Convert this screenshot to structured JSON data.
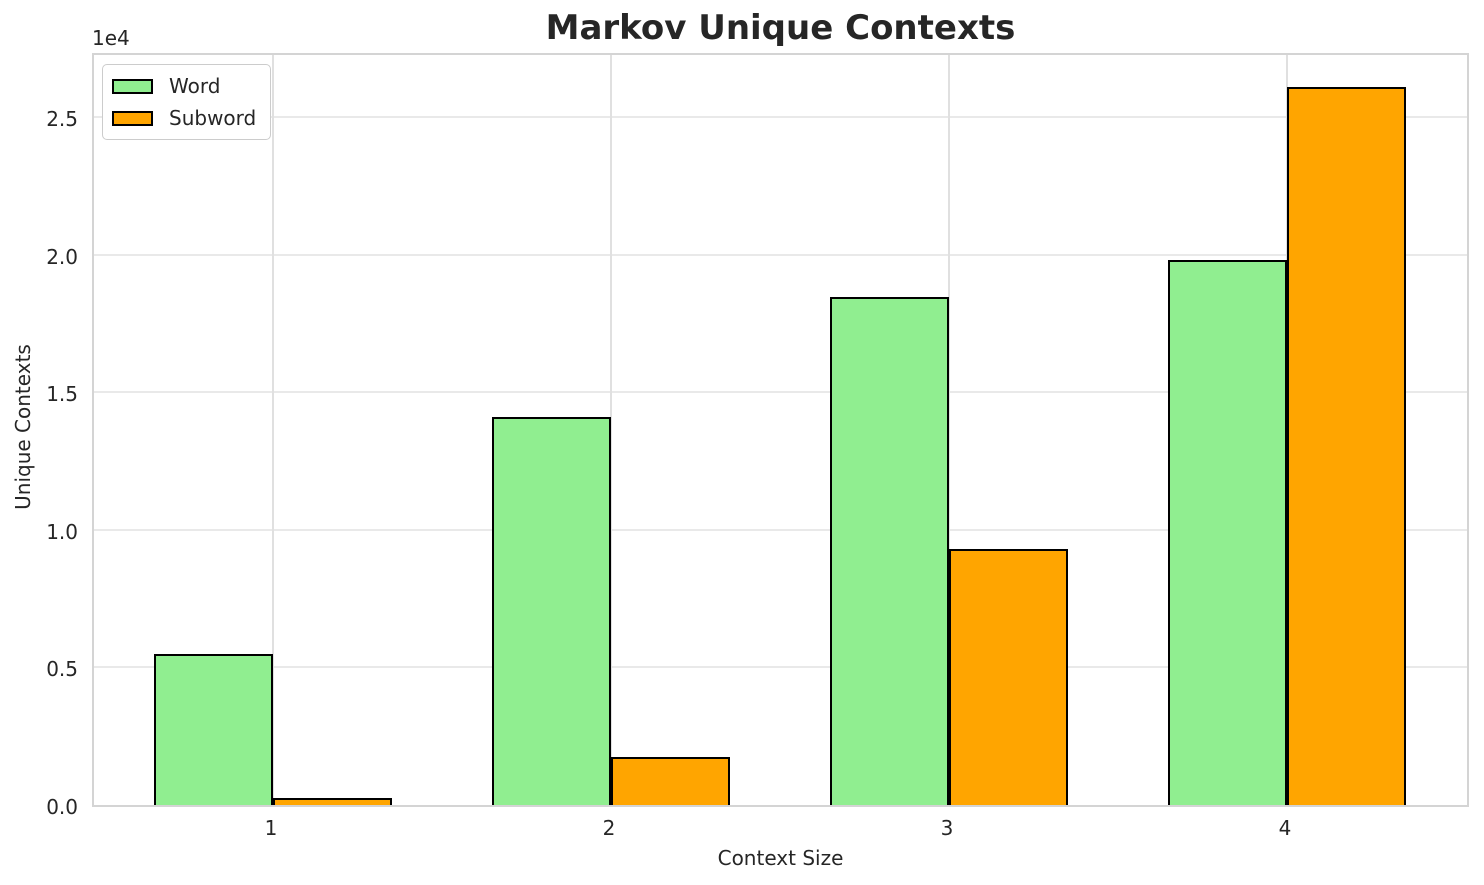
{
  "chart_data": {
    "type": "bar",
    "title": "Markov Unique Contexts",
    "xlabel": "Context Size",
    "ylabel": "Unique Contexts",
    "y_offset_label": "1e4",
    "categories": [
      "1",
      "2",
      "3",
      "4"
    ],
    "series": [
      {
        "name": "Word",
        "color": "#90ee90",
        "values": [
          5500,
          14100,
          18450,
          19800
        ]
      },
      {
        "name": "Subword",
        "color": "#ffa500",
        "values": [
          270,
          1750,
          9300,
          26100
        ]
      }
    ],
    "bar_edge_color": "#000000",
    "bar_group_width": 0.7,
    "ylim": [
      0,
      27400
    ],
    "yticks": [
      0,
      5000,
      10000,
      15000,
      20000,
      25000
    ],
    "ytick_labels": [
      "0.0",
      "0.5",
      "1.0",
      "1.5",
      "2.0",
      "2.5"
    ],
    "grid": true,
    "grid_color": "#e7e7e7",
    "spine_color": "#d4d4d4",
    "background_color": "#ffffff",
    "legend_position": "upper left"
  }
}
